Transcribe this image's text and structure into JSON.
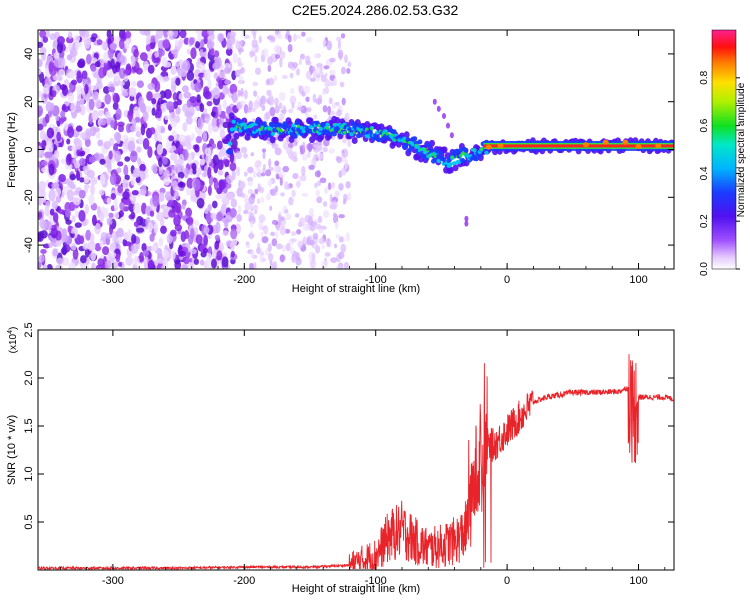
{
  "title": "C2E5.2024.286.02.53.G32",
  "chart_data": [
    {
      "type": "heatmap",
      "xlabel": "Height of straight line (km)",
      "ylabel": "Frequency (Hz)",
      "xlim": [
        -357,
        127
      ],
      "ylim": [
        -50,
        50
      ],
      "xticks": [
        -300,
        -200,
        -100,
        0,
        100
      ],
      "yticks": [
        -40,
        -20,
        0,
        20,
        40
      ],
      "colorbar": {
        "label": "Normalized spectral amplitude",
        "range": [
          0,
          1
        ],
        "ticks": [
          "0.0",
          "0.2",
          "0.4",
          "0.6",
          "0.8"
        ],
        "colormap": "rainbow (white-violet-blue-cyan-green-yellow-red-magenta)"
      },
      "features": {
        "diffuse_noise_region_x": [
          -357,
          -120
        ],
        "dense_noise_region_x": [
          -357,
          -205
        ],
        "ridge": [
          {
            "x": -210,
            "y": 10
          },
          {
            "x": -170,
            "y": 8
          },
          {
            "x": -130,
            "y": 9
          },
          {
            "x": -100,
            "y": 7
          },
          {
            "x": -80,
            "y": 4
          },
          {
            "x": -60,
            "y": -1
          },
          {
            "x": -45,
            "y": -5
          },
          {
            "x": -30,
            "y": -2
          },
          {
            "x": -10,
            "y": 1
          },
          {
            "x": 0,
            "y": 1.5
          },
          {
            "x": 127,
            "y": 1.5
          }
        ]
      }
    },
    {
      "type": "line",
      "xlabel": "Height of straight line (km)",
      "ylabel": "SNR (10 * v/v)",
      "y_multiplier": "(x10^4)",
      "xlim": [
        -357,
        127
      ],
      "ylim": [
        0,
        2.5
      ],
      "xticks": [
        -300,
        -200,
        -100,
        0,
        100
      ],
      "yticks": [
        0.5,
        1.0,
        1.5,
        2.0,
        2.5
      ],
      "series": [
        {
          "color": "#e8242a",
          "x": [
            -357,
            -300,
            -250,
            -200,
            -150,
            -120,
            -100,
            -90,
            -80,
            -70,
            -60,
            -50,
            -40,
            -35,
            -30,
            -25,
            -20,
            -15,
            -10,
            0,
            10,
            20,
            30,
            50,
            70,
            85,
            92,
            96,
            100,
            110,
            120,
            127
          ],
          "y": [
            0.02,
            0.02,
            0.02,
            0.03,
            0.03,
            0.05,
            0.15,
            0.35,
            0.42,
            0.3,
            0.22,
            0.25,
            0.3,
            0.35,
            0.45,
            0.9,
            1.25,
            1.3,
            1.3,
            1.45,
            1.6,
            1.75,
            1.8,
            1.85,
            1.85,
            1.86,
            1.9,
            1.6,
            1.8,
            1.8,
            1.8,
            1.78
          ]
        }
      ]
    }
  ]
}
